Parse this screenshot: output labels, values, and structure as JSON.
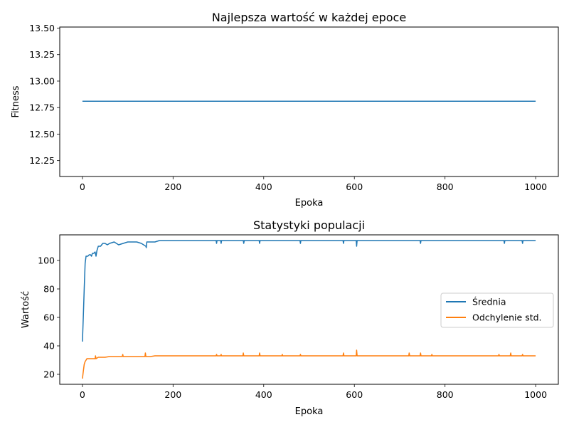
{
  "colors": {
    "blue": "#1f77b4",
    "orange": "#ff7f0e"
  },
  "chart_data": [
    {
      "type": "line",
      "title": "Najlepsza wartość w każdej epoce",
      "xlabel": "Epoka",
      "ylabel": "Fitness",
      "xlim": [
        -50,
        1050
      ],
      "ylim": [
        12.1,
        13.51
      ],
      "xticks": [
        0,
        200,
        400,
        600,
        800,
        1000
      ],
      "yticks": [
        12.25,
        12.5,
        12.75,
        13.0,
        13.25,
        13.5
      ],
      "xtick_labels": [
        "0",
        "200",
        "400",
        "600",
        "800",
        "1000"
      ],
      "ytick_labels": [
        "12.25",
        "12.50",
        "12.75",
        "13.00",
        "13.25",
        "13.50"
      ],
      "grid": false,
      "series": [
        {
          "name": "",
          "color": "#1f77b4",
          "x": [
            0,
            1000
          ],
          "y": [
            12.81,
            12.81
          ]
        }
      ]
    },
    {
      "type": "line",
      "title": "Statystyki populacji",
      "xlabel": "Epoka",
      "ylabel": "Wartość",
      "xlim": [
        -50,
        1050
      ],
      "ylim": [
        13,
        118
      ],
      "xticks": [
        0,
        200,
        400,
        600,
        800,
        1000
      ],
      "yticks": [
        20,
        40,
        60,
        80,
        100
      ],
      "xtick_labels": [
        "0",
        "200",
        "400",
        "600",
        "800",
        "1000"
      ],
      "ytick_labels": [
        "20",
        "40",
        "60",
        "80",
        "100"
      ],
      "grid": false,
      "legend_position": "center-right",
      "series": [
        {
          "name": "Średnia",
          "color": "#1f77b4",
          "x": [
            0,
            2,
            4,
            6,
            8,
            10,
            12,
            15,
            18,
            20,
            22,
            25,
            28,
            30,
            32,
            35,
            40,
            45,
            50,
            55,
            60,
            70,
            80,
            90,
            100,
            110,
            120,
            130,
            140,
            141,
            142,
            150,
            160,
            170,
            180,
            200,
            250,
            295,
            296,
            297,
            300,
            305,
            306,
            307,
            350,
            355,
            356,
            357,
            390,
            391,
            392,
            400,
            480,
            481,
            482,
            500,
            575,
            576,
            577,
            600,
            604,
            605,
            606,
            610,
            650,
            700,
            745,
            746,
            747,
            800,
            850,
            900,
            930,
            931,
            932,
            950,
            970,
            971,
            972,
            1000
          ],
          "y": [
            43,
            60,
            80,
            98,
            103,
            103,
            103,
            104,
            104,
            103,
            105,
            105,
            106,
            103,
            107,
            110,
            110,
            112,
            112,
            111,
            112,
            113,
            111,
            112,
            113,
            113,
            113,
            112,
            110,
            109,
            113,
            113,
            113,
            114,
            114,
            114,
            114,
            114,
            112,
            114,
            114,
            114,
            112,
            114,
            114,
            114,
            112,
            114,
            114,
            112,
            114,
            114,
            114,
            112,
            114,
            114,
            114,
            112,
            114,
            114,
            114,
            110,
            114,
            114,
            114,
            114,
            114,
            112,
            114,
            114,
            114,
            114,
            114,
            112,
            114,
            114,
            114,
            112,
            114,
            114
          ]
        },
        {
          "name": "Odchylenie std.",
          "color": "#ff7f0e",
          "x": [
            0,
            2,
            4,
            6,
            8,
            10,
            15,
            20,
            25,
            28,
            29,
            30,
            35,
            40,
            50,
            60,
            70,
            80,
            88,
            89,
            90,
            100,
            120,
            138,
            139,
            140,
            150,
            160,
            200,
            295,
            296,
            297,
            300,
            305,
            306,
            307,
            350,
            354,
            355,
            356,
            390,
            391,
            392,
            400,
            440,
            441,
            442,
            480,
            481,
            482,
            500,
            575,
            576,
            577,
            600,
            604,
            605,
            606,
            610,
            700,
            720,
            721,
            722,
            745,
            746,
            747,
            770,
            771,
            772,
            800,
            900,
            918,
            919,
            920,
            940,
            944,
            945,
            946,
            970,
            971,
            972,
            1000
          ],
          "y": [
            17,
            22,
            27,
            29,
            30,
            31,
            31,
            31,
            31,
            31,
            33,
            31,
            32,
            32,
            32,
            32.5,
            32.5,
            32.5,
            32.5,
            34,
            32.5,
            32.5,
            32.5,
            32.5,
            35,
            32.5,
            32.5,
            33,
            33,
            33,
            34,
            33,
            33,
            33,
            34,
            33,
            33,
            33,
            35,
            33,
            33,
            35,
            33,
            33,
            33,
            34,
            33,
            33,
            34,
            33,
            33,
            33,
            35,
            33,
            33,
            33,
            37,
            33,
            33,
            33,
            33,
            35,
            33,
            33,
            35,
            33,
            33,
            34,
            33,
            33,
            33,
            33,
            34,
            33,
            33,
            33,
            35,
            33,
            33,
            34,
            33,
            33
          ]
        }
      ]
    }
  ]
}
